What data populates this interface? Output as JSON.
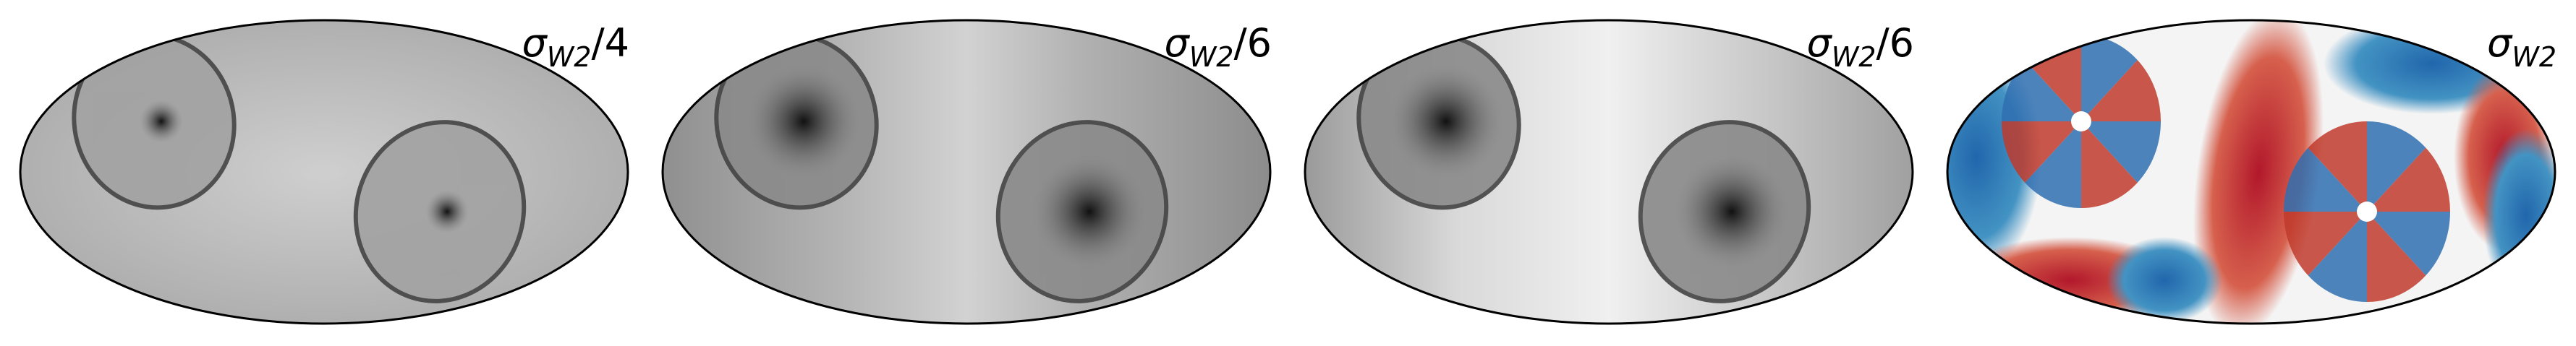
{
  "panels": [
    {
      "symbol": "σ",
      "subscript": "W2",
      "suffix": "/4"
    },
    {
      "symbol": "σ",
      "subscript": "W2",
      "suffix": "/6"
    },
    {
      "symbol": "σ",
      "subscript": "W2",
      "suffix": "/6"
    },
    {
      "symbol": "σ",
      "subscript": "W2"
    }
  ]
}
